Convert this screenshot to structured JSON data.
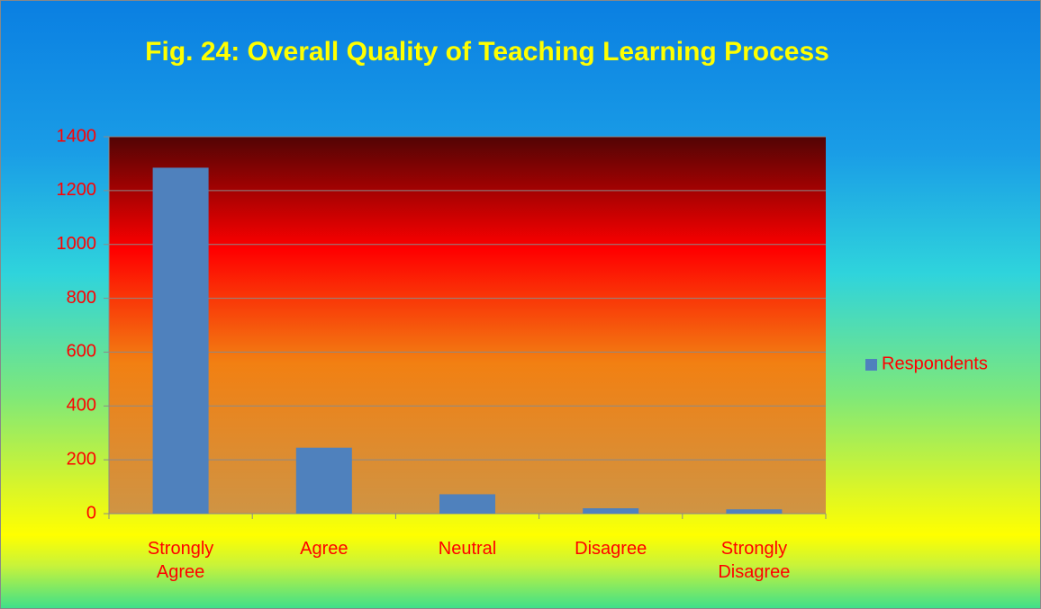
{
  "chart_data": {
    "type": "bar",
    "title": "Fig. 24: Overall Quality of Teaching Learning Process",
    "categories": [
      "Strongly Agree",
      "Agree",
      "Neutral",
      "Disagree",
      "Strongly Disagree"
    ],
    "series": [
      {
        "name": "Respondents",
        "color": "#4f81bd",
        "values": [
          1285,
          245,
          72,
          20,
          16
        ]
      }
    ],
    "ylim": [
      0,
      1400
    ],
    "yticks": [
      0,
      200,
      400,
      600,
      800,
      1000,
      1200,
      1400
    ],
    "grid": true,
    "legend": "right"
  }
}
